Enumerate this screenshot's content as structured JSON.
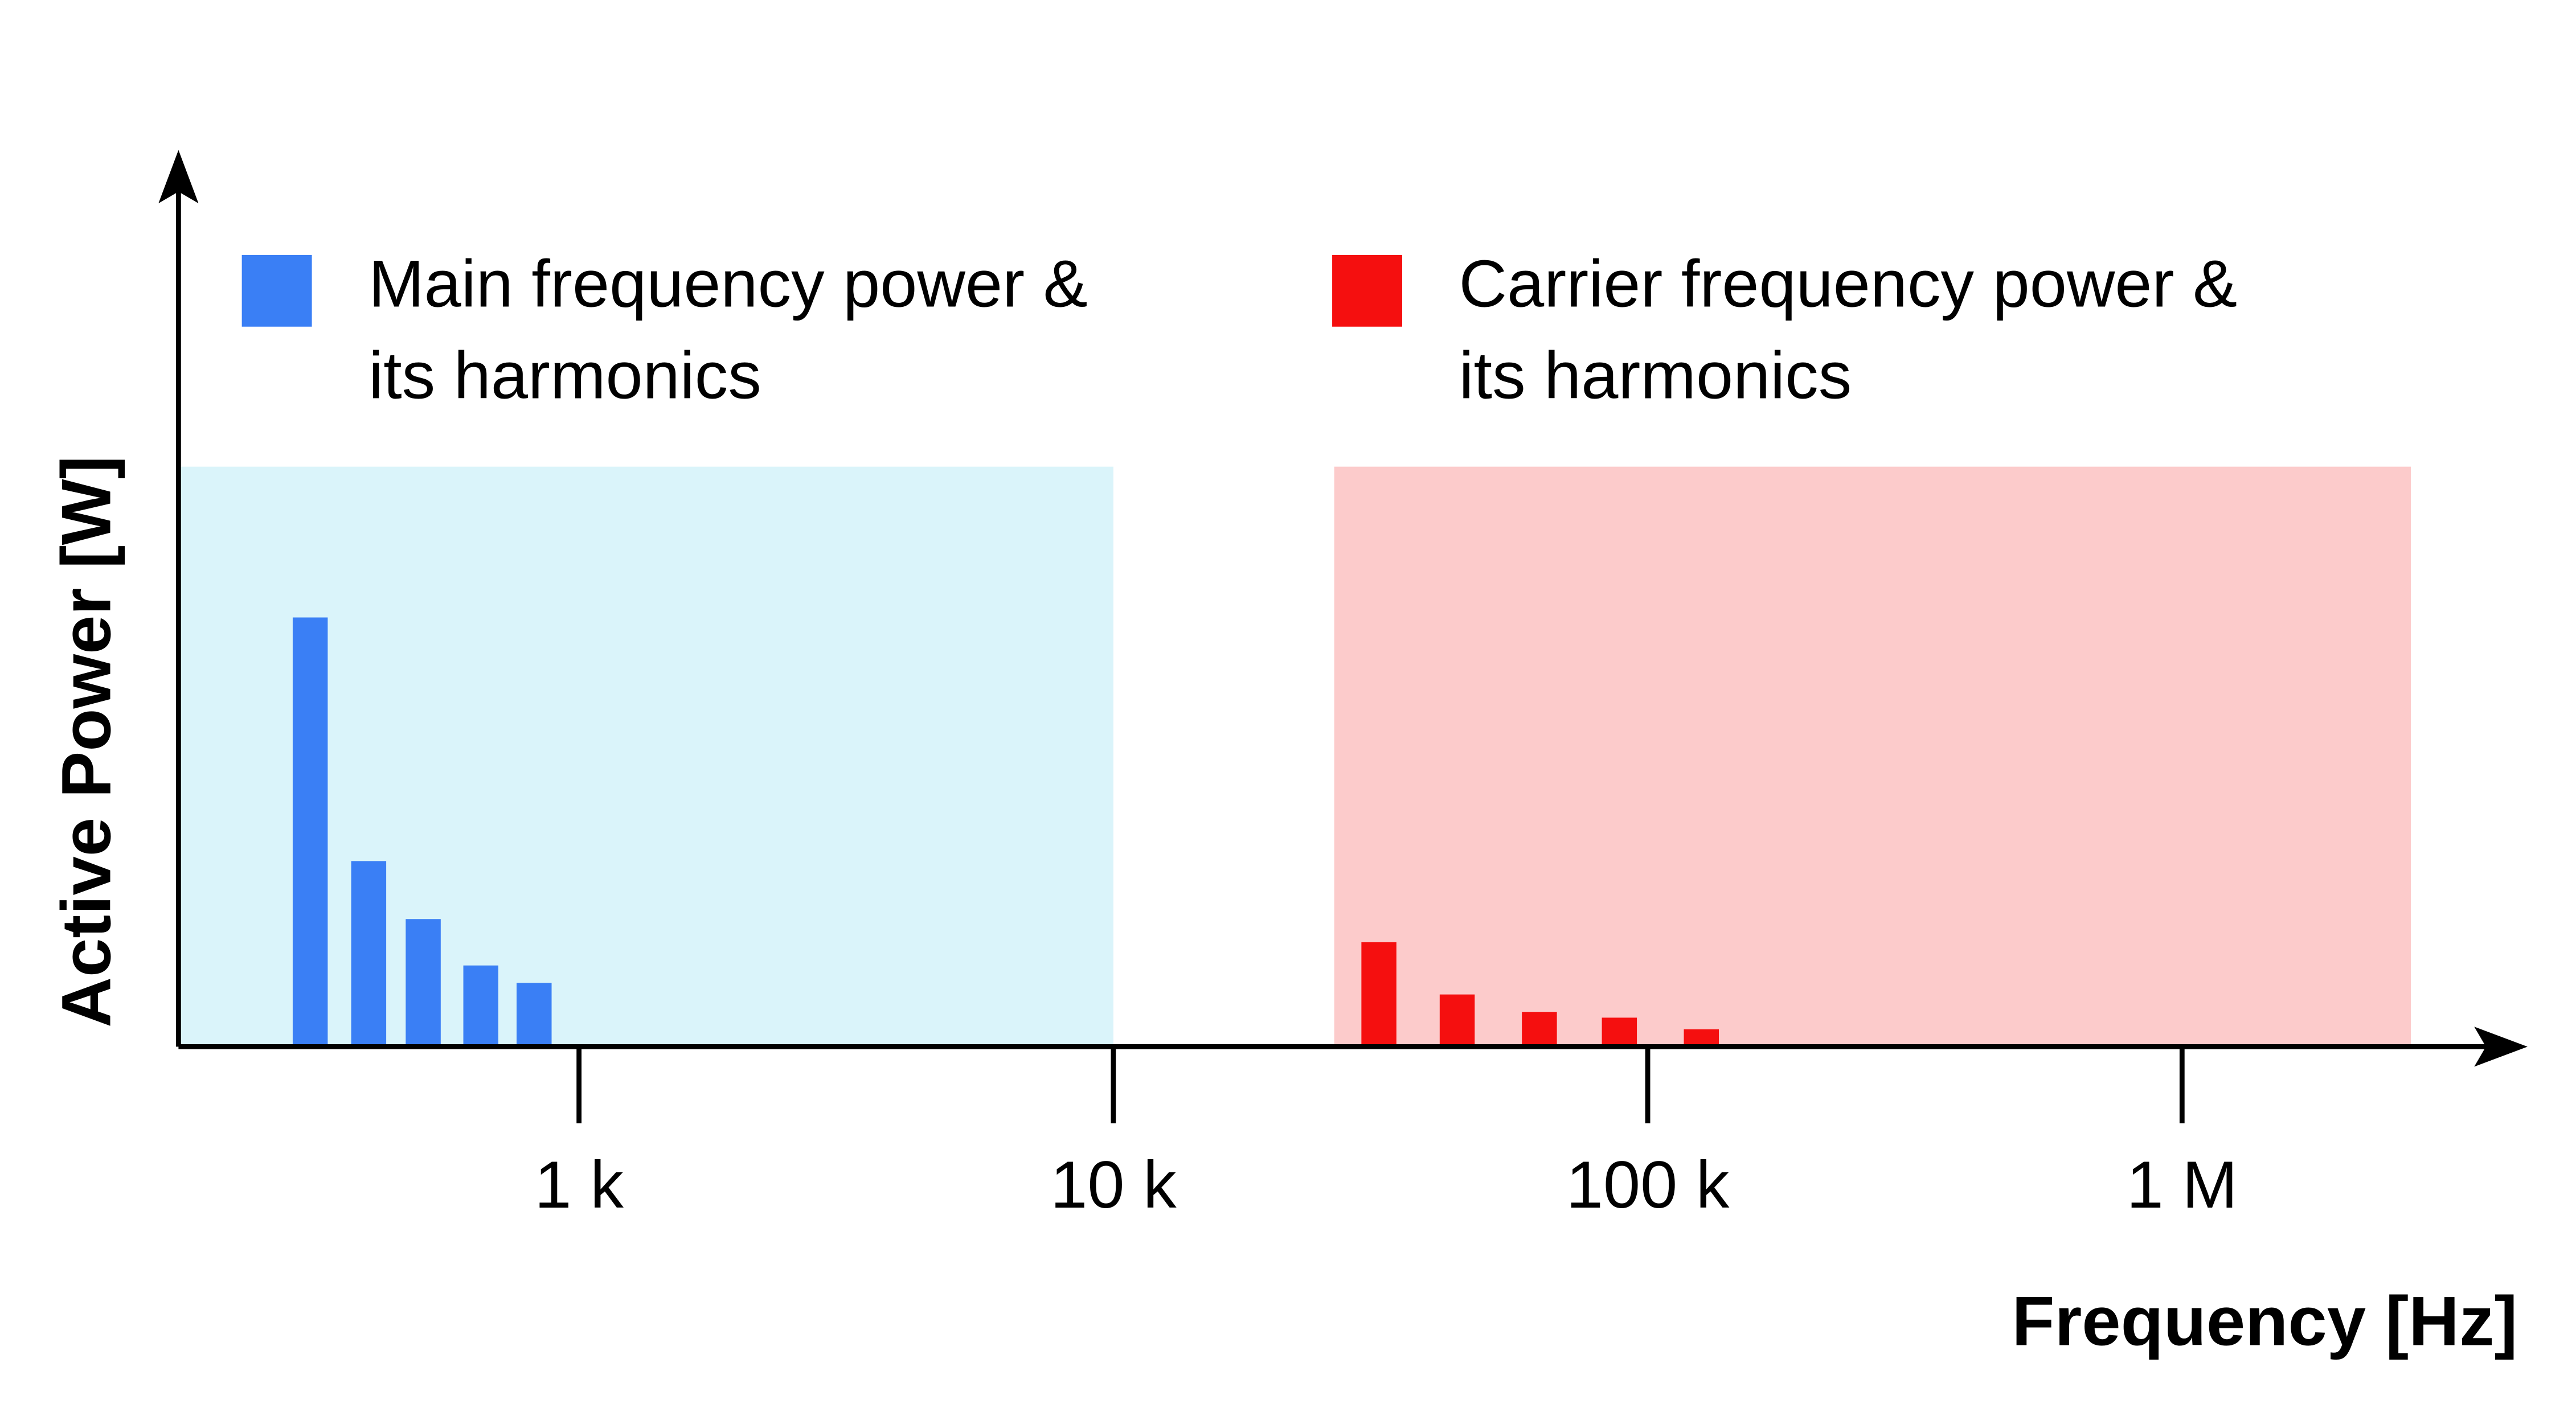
{
  "chart_data": {
    "type": "bar",
    "xlabel": "Frequency [Hz]",
    "ylabel": "Active Power [W]",
    "xscale": "log",
    "xlim": [
      178,
      4400000
    ],
    "xticks": [
      {
        "value": 1000,
        "label": "1 k"
      },
      {
        "value": 10000,
        "label": "10 k"
      },
      {
        "value": 100000,
        "label": "100 k"
      },
      {
        "value": 1000000,
        "label": "1 M"
      }
    ],
    "ylim": [
      0,
      1
    ],
    "series": [
      {
        "name": "Main frequency power & its harmonics",
        "color": "#3a7ff5",
        "band_color": "#daf4fa",
        "band": [
          178,
          10000
        ],
        "x": [
          314,
          404,
          511,
          655,
          824
        ],
        "values": [
          0.74,
          0.32,
          0.22,
          0.14,
          0.11
        ]
      },
      {
        "name": "Carrier frequency power & its harmonics",
        "color": "#f50f0f",
        "band_color": "#fccbcb",
        "band": [
          25900,
          2680000
        ],
        "x": [
          31400,
          44000,
          62700,
          88500,
          126000
        ],
        "values": [
          0.18,
          0.09,
          0.06,
          0.05,
          0.03
        ]
      }
    ]
  }
}
